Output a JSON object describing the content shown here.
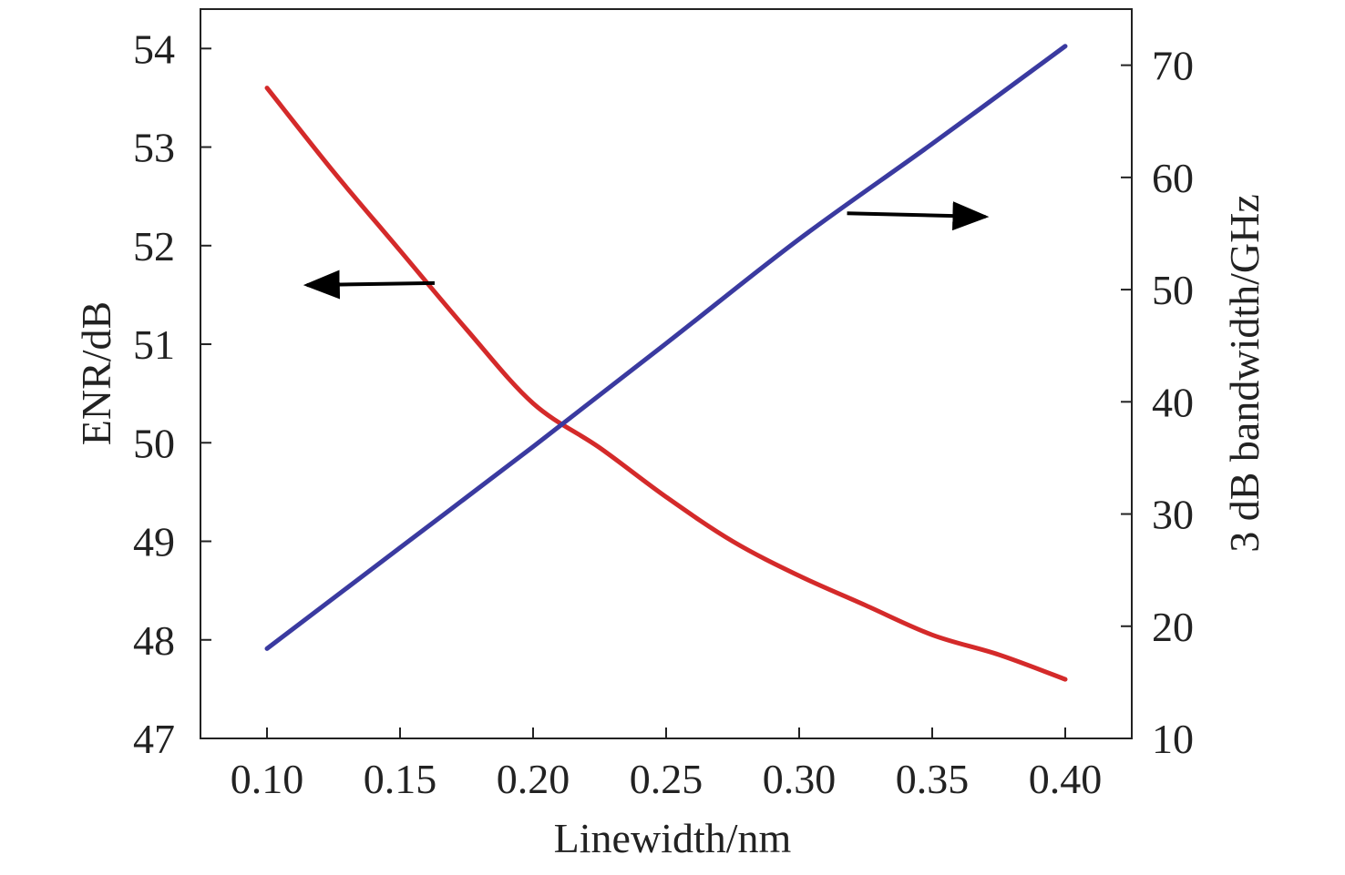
{
  "chart_data": {
    "type": "line",
    "xlabel": "Linewidth/nm",
    "ylabel_left": "ENR/dB",
    "ylabel_right": "3 dB bandwidth/GHz",
    "xlim": [
      0.075,
      0.425
    ],
    "ylim_left": [
      47,
      54.4
    ],
    "ylim_right": [
      10,
      75
    ],
    "x_ticks": [
      "0.10",
      "0.15",
      "0.20",
      "0.25",
      "0.30",
      "0.35",
      "0.40"
    ],
    "y_left_ticks": [
      "47",
      "48",
      "49",
      "50",
      "51",
      "52",
      "53",
      "54"
    ],
    "y_right_ticks": [
      "10",
      "20",
      "30",
      "40",
      "50",
      "60",
      "70"
    ],
    "grid": false,
    "series": [
      {
        "axis": "left",
        "color": "#d42a2a",
        "x": [
          0.1,
          0.125,
          0.15,
          0.175,
          0.2,
          0.225,
          0.25,
          0.275,
          0.3,
          0.325,
          0.35,
          0.375,
          0.4
        ],
        "y": [
          53.6,
          52.75,
          51.95,
          51.15,
          50.4,
          49.95,
          49.45,
          49.0,
          48.65,
          48.35,
          48.05,
          47.85,
          47.6
        ]
      },
      {
        "axis": "right",
        "color": "#3a3aa0",
        "x": [
          0.1,
          0.15,
          0.2,
          0.25,
          0.3,
          0.35,
          0.4
        ],
        "y": [
          18.0,
          27.0,
          36.0,
          45.2,
          54.5,
          63.0,
          71.7
        ]
      }
    ],
    "annotations": [
      {
        "type": "arrow",
        "direction": "left",
        "points_to": "left-axis",
        "from": [
          0.163,
          51.62
        ],
        "to": [
          0.115,
          51.6
        ]
      },
      {
        "type": "arrow",
        "direction": "right",
        "points_to": "right-axis",
        "from_right": [
          0.318,
          56.8
        ],
        "to_right": [
          0.37,
          56.5
        ]
      }
    ]
  }
}
